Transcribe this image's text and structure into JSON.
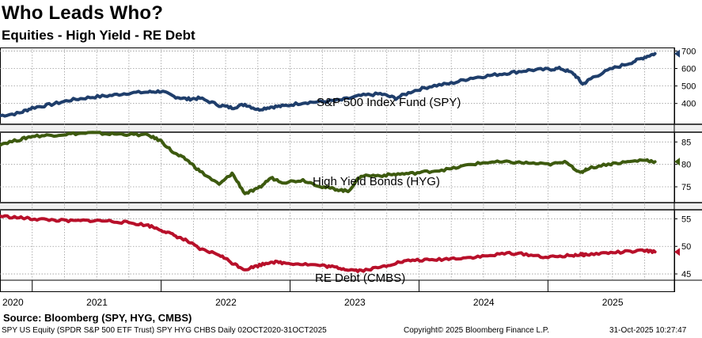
{
  "header": {
    "title": "Who Leads Who?",
    "subtitle": "Equities - High Yield - RE Debt"
  },
  "footer": {
    "source": "Source: Bloomberg (SPY, HYG, CMBS)",
    "left": "SPY US Equity (SPDR S&P 500 ETF Trust) SPY HYG CHBS Daily 02OCT2020-31OCT2025",
    "middle": "Copyright© 2025 Bloomberg Finance L.P.",
    "right": "31-Oct-2025 10:27:47"
  },
  "colors": {
    "spy": "#1f3e6b",
    "hyg": "#3d5a0f",
    "cmbs": "#b8102a",
    "divider": "#444444",
    "grid": "#9a9a9a"
  },
  "chart_data": [
    {
      "type": "line",
      "panel": "spy",
      "label": "S&P 500 Index Fund (SPY)",
      "yticks": [
        400,
        500,
        600,
        700
      ],
      "ylim": [
        290,
        720
      ],
      "x": [
        2020.75,
        2020.9,
        2021.0,
        2021.15,
        2021.3,
        2021.45,
        2021.6,
        2021.75,
        2021.9,
        2022.0,
        2022.1,
        2022.2,
        2022.3,
        2022.45,
        2022.55,
        2022.65,
        2022.75,
        2022.85,
        2022.95,
        2023.1,
        2023.25,
        2023.4,
        2023.55,
        2023.7,
        2023.82,
        2023.95,
        2024.1,
        2024.25,
        2024.4,
        2024.55,
        2024.7,
        2024.85,
        2025.0,
        2025.1,
        2025.2,
        2025.27,
        2025.35,
        2025.5,
        2025.65,
        2025.75,
        2025.83
      ],
      "values": [
        330,
        345,
        375,
        395,
        420,
        435,
        445,
        460,
        465,
        470,
        440,
        425,
        430,
        390,
        375,
        395,
        365,
        380,
        385,
        405,
        410,
        420,
        445,
        455,
        430,
        470,
        500,
        515,
        545,
        560,
        575,
        590,
        595,
        600,
        570,
        510,
        550,
        600,
        635,
        665,
        685
      ]
    },
    {
      "type": "line",
      "panel": "hyg",
      "label": "High Yield Bonds (HYG)",
      "yticks": [
        75,
        80,
        85
      ],
      "ylim": [
        72,
        87
      ],
      "x": [
        2020.75,
        2020.9,
        2021.0,
        2021.15,
        2021.3,
        2021.45,
        2021.6,
        2021.75,
        2021.9,
        2022.0,
        2022.1,
        2022.2,
        2022.3,
        2022.45,
        2022.55,
        2022.65,
        2022.75,
        2022.85,
        2022.95,
        2023.1,
        2023.25,
        2023.35,
        2023.45,
        2023.55,
        2023.7,
        2023.82,
        2023.95,
        2024.1,
        2024.25,
        2024.4,
        2024.55,
        2024.7,
        2024.85,
        2025.0,
        2025.15,
        2025.25,
        2025.3,
        2025.45,
        2025.6,
        2025.75,
        2025.83
      ],
      "values": [
        84.5,
        85.5,
        86.3,
        86.5,
        86.8,
        87.0,
        86.8,
        86.7,
        86.5,
        85.2,
        82.5,
        81.0,
        78.5,
        75.5,
        78.0,
        73.5,
        74.5,
        77.0,
        76.0,
        76.5,
        75.0,
        74.5,
        74.0,
        77.5,
        77.5,
        77.8,
        78.0,
        78.5,
        79.0,
        80.0,
        80.5,
        80.5,
        80.3,
        80.0,
        80.5,
        78.0,
        79.0,
        80.0,
        80.5,
        81.0,
        80.6
      ]
    },
    {
      "type": "line",
      "panel": "cmbs",
      "label": "RE Debt (CMBS)",
      "yticks": [
        45,
        50,
        55
      ],
      "ylim": [
        44,
        56.5
      ],
      "x": [
        2020.75,
        2020.9,
        2021.0,
        2021.15,
        2021.3,
        2021.45,
        2021.6,
        2021.75,
        2021.9,
        2022.0,
        2022.1,
        2022.2,
        2022.3,
        2022.45,
        2022.55,
        2022.65,
        2022.75,
        2022.85,
        2022.95,
        2023.1,
        2023.25,
        2023.35,
        2023.45,
        2023.55,
        2023.7,
        2023.82,
        2023.95,
        2024.1,
        2024.25,
        2024.4,
        2024.55,
        2024.7,
        2024.85,
        2025.0,
        2025.15,
        2025.25,
        2025.3,
        2025.45,
        2025.6,
        2025.75,
        2025.83
      ],
      "values": [
        55.5,
        55.2,
        55.0,
        54.8,
        54.6,
        54.7,
        54.6,
        54.3,
        53.8,
        53.0,
        52.0,
        51.0,
        49.5,
        48.5,
        47.0,
        45.8,
        46.5,
        47.2,
        47.0,
        46.8,
        46.5,
        46.2,
        45.8,
        45.6,
        46.2,
        47.0,
        47.5,
        47.5,
        47.8,
        48.0,
        48.3,
        48.8,
        48.5,
        48.0,
        48.3,
        48.5,
        48.5,
        48.8,
        49.0,
        49.2,
        49.0
      ]
    }
  ],
  "xaxis": {
    "labels": [
      "2020",
      "2021",
      "2022",
      "2023",
      "2024",
      "2025"
    ],
    "positions": [
      2020.5,
      2021.5,
      2022.5,
      2023.5,
      2024.5,
      2025.5
    ],
    "year_starts": [
      2021,
      2022,
      2023,
      2024,
      2025
    ],
    "xlim": [
      2020.75,
      2025.98
    ]
  }
}
